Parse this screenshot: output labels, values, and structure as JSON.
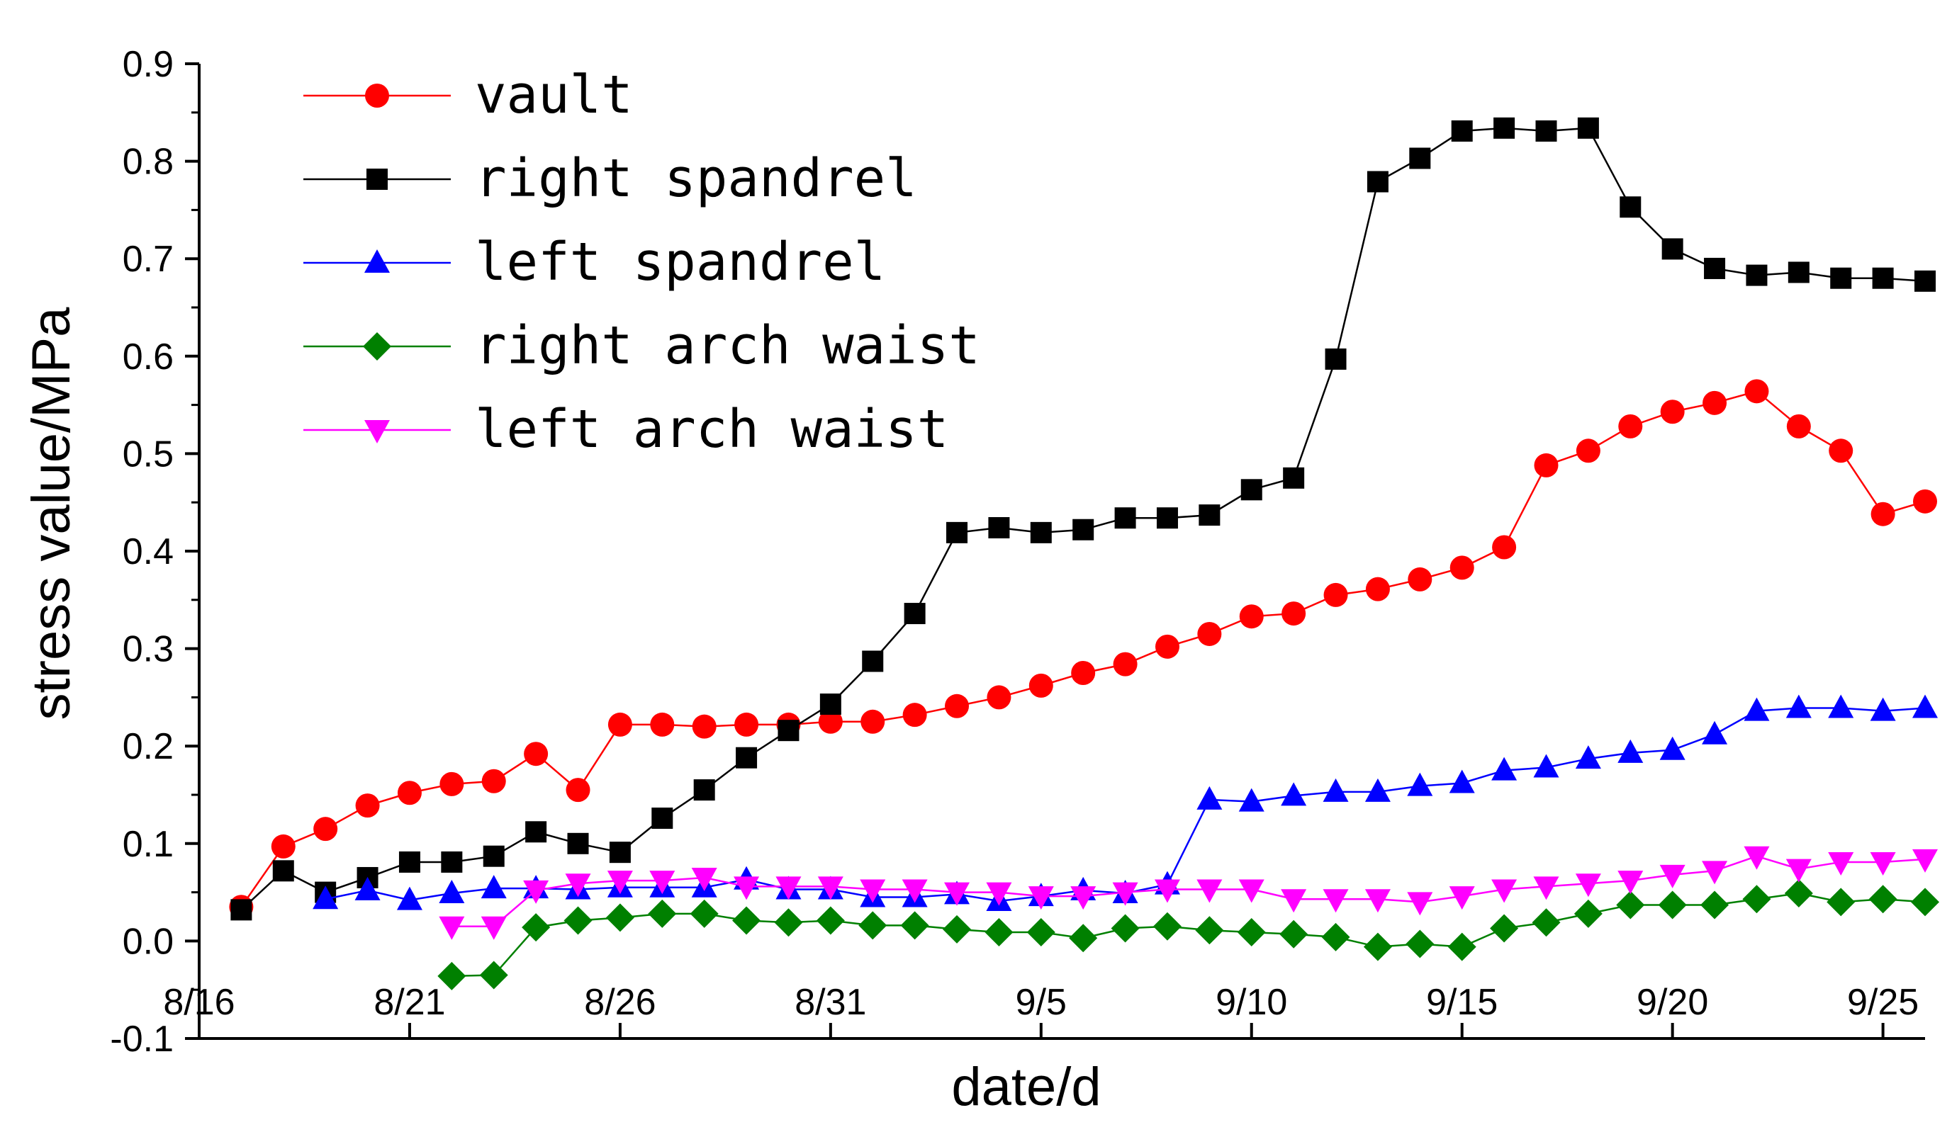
{
  "chart_data": {
    "type": "line",
    "title": "",
    "xlabel": "date/d",
    "ylabel": "stress value/MPa",
    "xlim": [
      "8/16",
      "9/26"
    ],
    "ylim": [
      -0.1,
      0.9
    ],
    "x_ticks": [
      "8/16",
      "8/21",
      "8/26",
      "8/31",
      "9/5",
      "9/10",
      "9/15",
      "9/20",
      "9/25"
    ],
    "y_ticks": [
      "-0.1",
      "0.0",
      "0.1",
      "0.2",
      "0.3",
      "0.4",
      "0.5",
      "0.6",
      "0.7",
      "0.8",
      "0.9"
    ],
    "grid": false,
    "legend_position": "top-left",
    "series": [
      {
        "name": "vault",
        "color": "#ff0000",
        "marker": "circle",
        "points": [
          [
            "8/17",
            0.035
          ],
          [
            "8/18",
            0.097
          ],
          [
            "8/19",
            0.115
          ],
          [
            "8/20",
            0.139
          ],
          [
            "8/21",
            0.152
          ],
          [
            "8/22",
            0.161
          ],
          [
            "8/23",
            0.164
          ],
          [
            "8/24",
            0.192
          ],
          [
            "8/25",
            0.155
          ],
          [
            "8/26",
            0.222
          ],
          [
            "8/27",
            0.222
          ],
          [
            "8/28",
            0.22
          ],
          [
            "8/29",
            0.222
          ],
          [
            "8/30",
            0.222
          ],
          [
            "8/31",
            0.225
          ],
          [
            "9/1",
            0.225
          ],
          [
            "9/2",
            0.232
          ],
          [
            "9/3",
            0.241
          ],
          [
            "9/4",
            0.25
          ],
          [
            "9/5",
            0.262
          ],
          [
            "9/6",
            0.275
          ],
          [
            "9/7",
            0.284
          ],
          [
            "9/8",
            0.302
          ],
          [
            "9/9",
            0.315
          ],
          [
            "9/10",
            0.333
          ],
          [
            "9/11",
            0.336
          ],
          [
            "9/12",
            0.355
          ],
          [
            "9/13",
            0.361
          ],
          [
            "9/14",
            0.371
          ],
          [
            "9/15",
            0.383
          ],
          [
            "9/16",
            0.404
          ],
          [
            "9/17",
            0.488
          ],
          [
            "9/18",
            0.503
          ],
          [
            "9/19",
            0.528
          ],
          [
            "9/20",
            0.543
          ],
          [
            "9/21",
            0.552
          ],
          [
            "9/22",
            0.564
          ],
          [
            "9/23",
            0.528
          ],
          [
            "9/24",
            0.503
          ],
          [
            "9/25",
            0.438
          ],
          [
            "9/26",
            0.451
          ]
        ]
      },
      {
        "name": "right spandrel",
        "color": "#000000",
        "marker": "square",
        "points": [
          [
            "8/17",
            0.032
          ],
          [
            "8/18",
            0.072
          ],
          [
            "8/19",
            0.05
          ],
          [
            "8/20",
            0.065
          ],
          [
            "8/21",
            0.081
          ],
          [
            "8/22",
            0.081
          ],
          [
            "8/23",
            0.087
          ],
          [
            "8/24",
            0.112
          ],
          [
            "8/25",
            0.1
          ],
          [
            "8/26",
            0.091
          ],
          [
            "8/27",
            0.126
          ],
          [
            "8/28",
            0.155
          ],
          [
            "8/29",
            0.188
          ],
          [
            "8/30",
            0.216
          ],
          [
            "8/31",
            0.243
          ],
          [
            "9/1",
            0.287
          ],
          [
            "9/2",
            0.336
          ],
          [
            "9/3",
            0.419
          ],
          [
            "9/4",
            0.424
          ],
          [
            "9/5",
            0.419
          ],
          [
            "9/6",
            0.422
          ],
          [
            "9/7",
            0.434
          ],
          [
            "9/8",
            0.434
          ],
          [
            "9/9",
            0.437
          ],
          [
            "9/10",
            0.463
          ],
          [
            "9/11",
            0.475
          ],
          [
            "9/12",
            0.597
          ],
          [
            "9/13",
            0.779
          ],
          [
            "9/14",
            0.803
          ],
          [
            "9/15",
            0.831
          ],
          [
            "9/16",
            0.834
          ],
          [
            "9/17",
            0.831
          ],
          [
            "9/18",
            0.834
          ],
          [
            "9/19",
            0.753
          ],
          [
            "9/20",
            0.71
          ],
          [
            "9/21",
            0.69
          ],
          [
            "9/22",
            0.683
          ],
          [
            "9/23",
            0.686
          ],
          [
            "9/24",
            0.68
          ],
          [
            "9/25",
            0.68
          ],
          [
            "9/26",
            0.677
          ]
        ]
      },
      {
        "name": "left spandrel",
        "color": "#0000ff",
        "marker": "triangle-up",
        "points": [
          [
            "8/19",
            0.043
          ],
          [
            "8/20",
            0.052
          ],
          [
            "8/21",
            0.042
          ],
          [
            "8/22",
            0.049
          ],
          [
            "8/23",
            0.054
          ],
          [
            "8/24",
            0.054
          ],
          [
            "8/25",
            0.053
          ],
          [
            "8/26",
            0.055
          ],
          [
            "8/27",
            0.055
          ],
          [
            "8/28",
            0.055
          ],
          [
            "8/29",
            0.063
          ],
          [
            "8/30",
            0.053
          ],
          [
            "8/31",
            0.053
          ],
          [
            "9/1",
            0.045
          ],
          [
            "9/2",
            0.045
          ],
          [
            "9/3",
            0.048
          ],
          [
            "9/4",
            0.041
          ],
          [
            "9/5",
            0.046
          ],
          [
            "9/6",
            0.052
          ],
          [
            "9/7",
            0.049
          ],
          [
            "9/8",
            0.058
          ],
          [
            "9/9",
            0.145
          ],
          [
            "9/10",
            0.143
          ],
          [
            "9/11",
            0.149
          ],
          [
            "9/12",
            0.153
          ],
          [
            "9/13",
            0.153
          ],
          [
            "9/14",
            0.159
          ],
          [
            "9/15",
            0.162
          ],
          [
            "9/16",
            0.175
          ],
          [
            "9/17",
            0.178
          ],
          [
            "9/18",
            0.187
          ],
          [
            "9/19",
            0.193
          ],
          [
            "9/20",
            0.196
          ],
          [
            "9/21",
            0.212
          ],
          [
            "9/22",
            0.236
          ],
          [
            "9/23",
            0.239
          ],
          [
            "9/24",
            0.239
          ],
          [
            "9/25",
            0.236
          ],
          [
            "9/26",
            0.239
          ]
        ]
      },
      {
        "name": "right arch waist",
        "color": "#008000",
        "marker": "diamond",
        "points": [
          [
            "8/22",
            -0.036
          ],
          [
            "8/23",
            -0.035
          ],
          [
            "8/24",
            0.014
          ],
          [
            "8/25",
            0.021
          ],
          [
            "8/26",
            0.024
          ],
          [
            "8/27",
            0.028
          ],
          [
            "8/28",
            0.028
          ],
          [
            "8/29",
            0.021
          ],
          [
            "8/30",
            0.019
          ],
          [
            "8/31",
            0.021
          ],
          [
            "9/1",
            0.016
          ],
          [
            "9/2",
            0.016
          ],
          [
            "9/3",
            0.012
          ],
          [
            "9/4",
            0.009
          ],
          [
            "9/5",
            0.009
          ],
          [
            "9/6",
            0.003
          ],
          [
            "9/7",
            0.013
          ],
          [
            "9/8",
            0.015
          ],
          [
            "9/9",
            0.011
          ],
          [
            "9/10",
            0.009
          ],
          [
            "9/11",
            0.007
          ],
          [
            "9/12",
            0.004
          ],
          [
            "9/13",
            -0.006
          ],
          [
            "9/14",
            -0.003
          ],
          [
            "9/15",
            -0.006
          ],
          [
            "9/16",
            0.013
          ],
          [
            "9/17",
            0.019
          ],
          [
            "9/18",
            0.028
          ],
          [
            "9/19",
            0.037
          ],
          [
            "9/20",
            0.037
          ],
          [
            "9/21",
            0.037
          ],
          [
            "9/22",
            0.043
          ],
          [
            "9/23",
            0.049
          ],
          [
            "9/24",
            0.04
          ],
          [
            "9/25",
            0.043
          ],
          [
            "9/26",
            0.04
          ]
        ]
      },
      {
        "name": "left arch waist",
        "color": "#ff00ff",
        "marker": "triangle-down",
        "points": [
          [
            "8/22",
            0.015
          ],
          [
            "8/23",
            0.015
          ],
          [
            "8/24",
            0.052
          ],
          [
            "8/25",
            0.059
          ],
          [
            "8/26",
            0.062
          ],
          [
            "8/27",
            0.062
          ],
          [
            "8/28",
            0.065
          ],
          [
            "8/29",
            0.056
          ],
          [
            "8/30",
            0.056
          ],
          [
            "8/31",
            0.056
          ],
          [
            "9/1",
            0.053
          ],
          [
            "9/2",
            0.053
          ],
          [
            "9/3",
            0.05
          ],
          [
            "9/4",
            0.05
          ],
          [
            "9/5",
            0.046
          ],
          [
            "9/6",
            0.046
          ],
          [
            "9/7",
            0.05
          ],
          [
            "9/8",
            0.053
          ],
          [
            "9/9",
            0.053
          ],
          [
            "9/10",
            0.053
          ],
          [
            "9/11",
            0.043
          ],
          [
            "9/12",
            0.043
          ],
          [
            "9/13",
            0.043
          ],
          [
            "9/14",
            0.04
          ],
          [
            "9/15",
            0.046
          ],
          [
            "9/16",
            0.053
          ],
          [
            "9/17",
            0.056
          ],
          [
            "9/18",
            0.059
          ],
          [
            "9/19",
            0.062
          ],
          [
            "9/20",
            0.068
          ],
          [
            "9/21",
            0.072
          ],
          [
            "9/22",
            0.087
          ],
          [
            "9/23",
            0.074
          ],
          [
            "9/24",
            0.081
          ],
          [
            "9/25",
            0.081
          ],
          [
            "9/26",
            0.084
          ]
        ]
      }
    ]
  }
}
